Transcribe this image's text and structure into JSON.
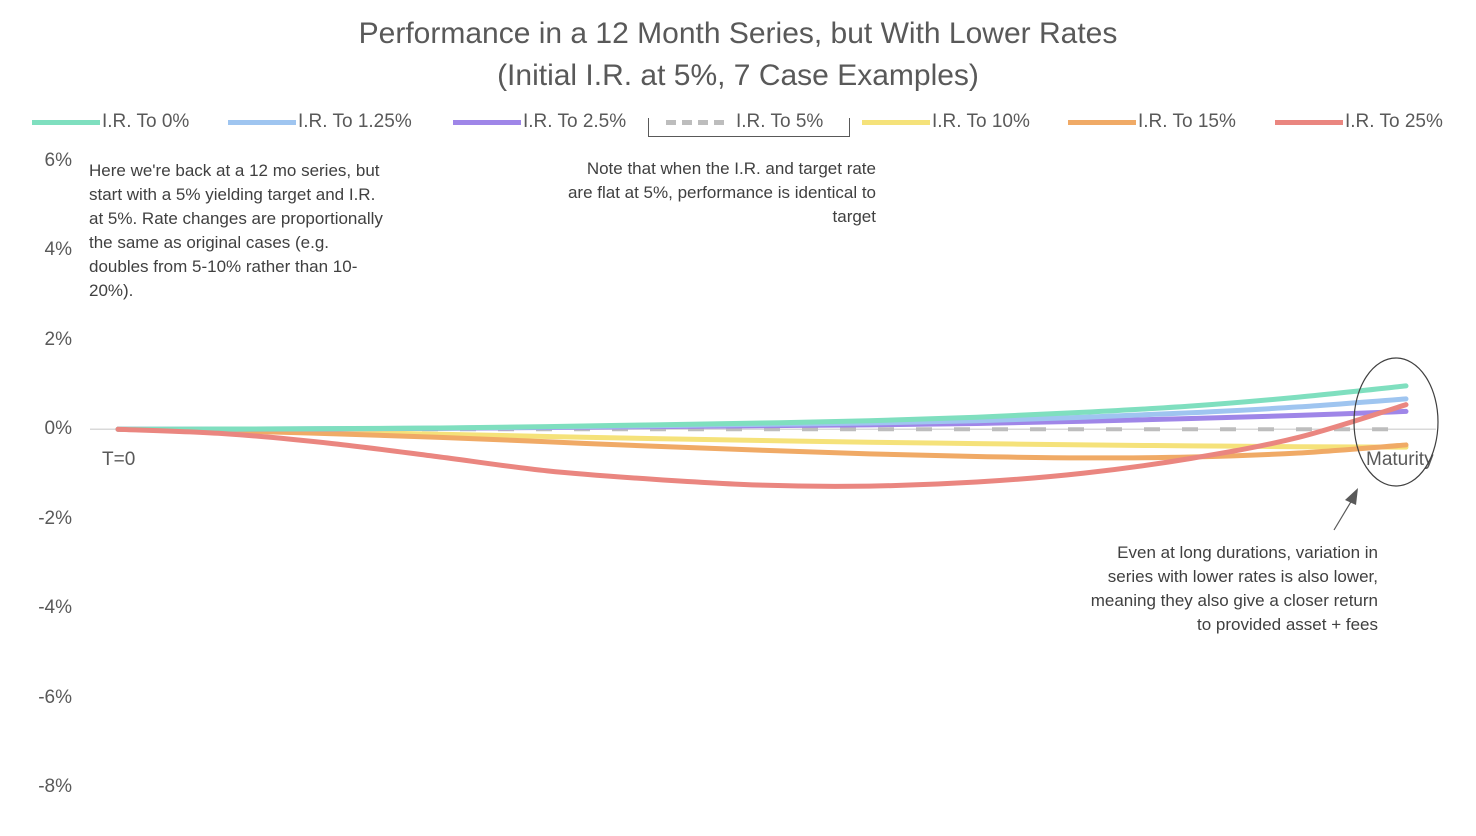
{
  "chart_data": {
    "type": "line",
    "title": "Performance in a 12 Month Series, but With Lower Rates",
    "subtitle": "(Initial I.R. at 5%, 7 Case Examples)",
    "x_start_label": "T=0",
    "x_end_label": "Maturity",
    "ylim": [
      -8,
      6
    ],
    "yticks": [
      "6%",
      "4%",
      "2%",
      "0%",
      "-2%",
      "-4%",
      "-6%",
      "-8%"
    ],
    "x": [
      0,
      1,
      2,
      3,
      4,
      5,
      6,
      7,
      8,
      9,
      10,
      11,
      12
    ],
    "series": [
      {
        "name": "I.R. To 0%",
        "color": "#7fdfbf",
        "dashed": false,
        "values": [
          0,
          0.005,
          0.015,
          0.03,
          0.06,
          0.1,
          0.14,
          0.19,
          0.27,
          0.38,
          0.52,
          0.72,
          0.97
        ]
      },
      {
        "name": "I.R. To 1.25%",
        "color": "#9fc5f0",
        "dashed": false,
        "values": [
          0,
          0.004,
          0.012,
          0.025,
          0.05,
          0.08,
          0.11,
          0.14,
          0.19,
          0.27,
          0.37,
          0.5,
          0.68
        ]
      },
      {
        "name": "I.R. To 2.5%",
        "color": "#9f86e8",
        "dashed": false,
        "values": [
          0,
          0.003,
          0.008,
          0.02,
          0.04,
          0.06,
          0.08,
          0.1,
          0.13,
          0.18,
          0.24,
          0.31,
          0.4
        ]
      },
      {
        "name": "I.R. To 5%",
        "color": "#bdbdbd",
        "dashed": true,
        "values": [
          0,
          0,
          0,
          0,
          0,
          0,
          0,
          0,
          0,
          0,
          0,
          0,
          0
        ]
      },
      {
        "name": "I.R. To 10%",
        "color": "#f5e27a",
        "dashed": false,
        "values": [
          0,
          -0.02,
          -0.06,
          -0.11,
          -0.16,
          -0.21,
          -0.25,
          -0.29,
          -0.32,
          -0.35,
          -0.37,
          -0.39,
          -0.4
        ]
      },
      {
        "name": "I.R. To 15%",
        "color": "#f0aa66",
        "dashed": false,
        "values": [
          0,
          -0.03,
          -0.1,
          -0.18,
          -0.28,
          -0.38,
          -0.47,
          -0.55,
          -0.61,
          -0.64,
          -0.62,
          -0.53,
          -0.35
        ]
      },
      {
        "name": "I.R. To 25%",
        "color": "#ea8680",
        "dashed": false,
        "values": [
          0,
          -0.1,
          -0.32,
          -0.62,
          -0.93,
          -1.12,
          -1.25,
          -1.27,
          -1.18,
          -0.98,
          -0.65,
          -0.18,
          0.55
        ]
      }
    ],
    "annotations": {
      "left": "Here we're back at a 12 mo series, but start with a 5% yielding target and I.R. at 5%.  Rate changes are proportionally the same as original cases (e.g. doubles from 5-10% rather than 10-20%).",
      "middle": "Note that when the I.R. and target rate are flat at 5%, performance is identical to target",
      "right": "Even at long durations, variation in series with lower rates is also lower, meaning they also give a closer return to provided asset + fees"
    },
    "grid": false,
    "legend_position": "top"
  }
}
